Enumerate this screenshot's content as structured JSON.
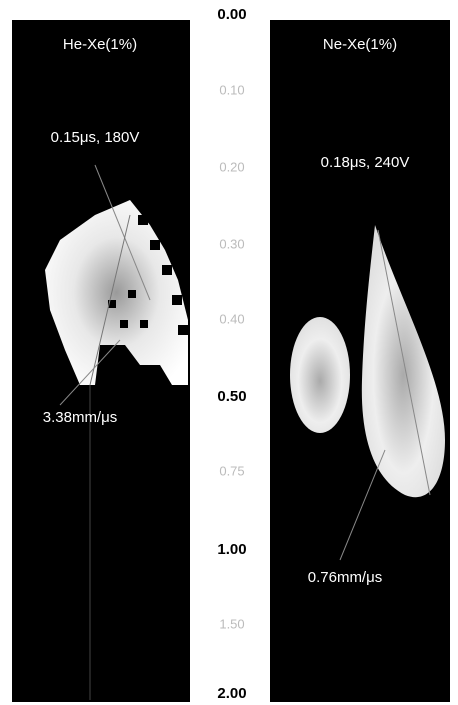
{
  "panels": [
    {
      "title": "He-Xe(1%)",
      "annotations": [
        "0.15μs, 180V",
        "3.38mm/μs"
      ]
    },
    {
      "title": "Ne-Xe(1%)",
      "annotations": [
        "0.18μs, 240V",
        "0.76mm/μs"
      ]
    }
  ],
  "scale": [
    "0.00",
    "0.10",
    "0.20",
    "0.30",
    "0.40",
    "0.50",
    "0.75",
    "1.00",
    "1.50",
    "2.00"
  ]
}
